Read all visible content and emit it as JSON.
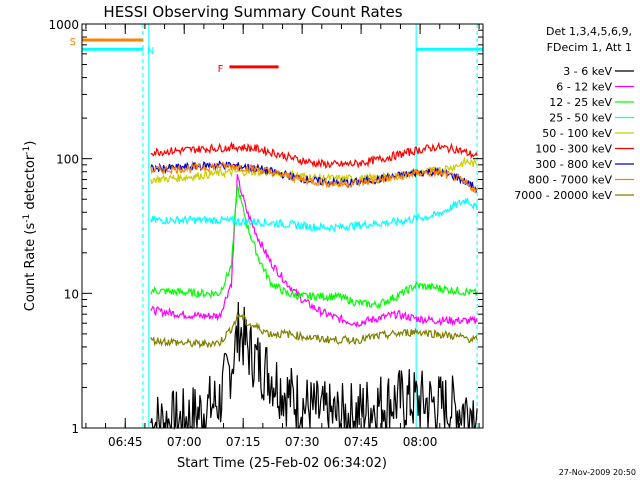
{
  "chart_data": {
    "type": "line",
    "title": "HESSI Observing Summary Count Rates",
    "xlabel": "Start Time (25-Feb-02 06:34:02)",
    "ylabel_main": "Count Rate (s",
    "ylabel_sup1": "-1",
    "ylabel_mid": " detector",
    "ylabel_sup2": "-1",
    "ylabel_end": ")",
    "y_scale": "log",
    "ylim": [
      1,
      1000
    ],
    "xlim_minutes": [
      0,
      102
    ],
    "y_ticks": [
      {
        "value": 1,
        "label": "1"
      },
      {
        "value": 10,
        "label": "10"
      },
      {
        "value": 100,
        "label": "100"
      },
      {
        "value": 1000,
        "label": "1000"
      }
    ],
    "x_ticks": [
      {
        "minutes": 11,
        "label": "06:45"
      },
      {
        "minutes": 26,
        "label": "07:00"
      },
      {
        "minutes": 41,
        "label": "07:15"
      },
      {
        "minutes": 56,
        "label": "07:30"
      },
      {
        "minutes": 71,
        "label": "07:45"
      },
      {
        "minutes": 86,
        "label": "08:00"
      }
    ],
    "legend": {
      "header": [
        "Det 1,3,4,5,6,9,",
        "FDecim 1, Att 1"
      ],
      "placement": "right"
    },
    "series": [
      {
        "name": "3 - 6 keV",
        "color": "#000000",
        "x": [
          17.5,
          25,
          30,
          35,
          38,
          40,
          42,
          45,
          48,
          52,
          56,
          60,
          65,
          70,
          75,
          80,
          85,
          90,
          95,
          100.5
        ],
        "y": [
          1.1,
          1.1,
          1.3,
          1.6,
          3,
          5.5,
          4,
          3,
          2.5,
          1.8,
          1.5,
          1.3,
          1.2,
          1.3,
          1.5,
          1.6,
          1.6,
          1.5,
          1.4,
          1.4
        ]
      },
      {
        "name": "6 - 12 keV",
        "color": "#ff00ff",
        "x": [
          17.5,
          25,
          30,
          35,
          38,
          39.5,
          42,
          45,
          48,
          52,
          56,
          60,
          65,
          70,
          75,
          80,
          85,
          90,
          95,
          100.5
        ],
        "y": [
          7.5,
          7,
          6.8,
          6.8,
          12,
          72,
          40,
          25,
          17,
          12,
          9,
          7.5,
          6.5,
          6,
          6.5,
          7,
          6.5,
          6.3,
          6.3,
          6.2
        ]
      },
      {
        "name": "12 - 25 keV",
        "color": "#00ff00",
        "x": [
          17.5,
          25,
          30,
          35,
          38,
          39.5,
          42,
          45,
          48,
          52,
          56,
          60,
          65,
          70,
          75,
          80,
          85,
          90,
          95,
          100.5
        ],
        "y": [
          10.5,
          10.2,
          10,
          10,
          16,
          62,
          32,
          18,
          12,
          10,
          9.5,
          9.5,
          9.5,
          8.5,
          8.2,
          9.5,
          11.5,
          11,
          10.5,
          10
        ]
      },
      {
        "name": "25 - 50 keV",
        "color": "#00ffff",
        "x": [
          17.5,
          25,
          30,
          35,
          40,
          45,
          50,
          55,
          60,
          65,
          70,
          75,
          80,
          85,
          90,
          95,
          98,
          100.5
        ],
        "y": [
          35,
          35,
          35,
          35,
          34,
          34,
          33,
          32,
          31,
          31,
          32,
          33,
          34,
          36,
          38,
          45,
          50,
          42
        ]
      },
      {
        "name": "50 - 100 keV",
        "color": "#cccc00",
        "x": [
          17.5,
          25,
          30,
          35,
          40,
          45,
          50,
          55,
          60,
          65,
          70,
          75,
          80,
          85,
          90,
          95,
          98,
          100.5
        ],
        "y": [
          70,
          72,
          75,
          78,
          80,
          80,
          78,
          75,
          72,
          71,
          71,
          72,
          74,
          78,
          82,
          88,
          95,
          90
        ]
      },
      {
        "name": "100 - 300 keV",
        "color": "#ff0000",
        "x": [
          17.5,
          25,
          30,
          35,
          40,
          45,
          50,
          55,
          60,
          65,
          70,
          75,
          80,
          85,
          90,
          95,
          98,
          100.5
        ],
        "y": [
          112,
          115,
          118,
          120,
          122,
          118,
          108,
          98,
          92,
          90,
          92,
          98,
          106,
          115,
          122,
          118,
          110,
          105
        ]
      },
      {
        "name": "300 - 800 keV",
        "color": "#0000cc",
        "x": [
          17.5,
          25,
          30,
          35,
          40,
          45,
          50,
          55,
          60,
          65,
          70,
          75,
          80,
          85,
          90,
          95,
          98,
          100.5
        ],
        "y": [
          84,
          86,
          88,
          90,
          88,
          84,
          78,
          72,
          68,
          66,
          67,
          70,
          74,
          79,
          80,
          74,
          66,
          60
        ]
      },
      {
        "name": "800 - 7000 keV",
        "color": "#ff8000",
        "x": [
          17.5,
          25,
          30,
          35,
          40,
          45,
          50,
          55,
          60,
          65,
          70,
          75,
          80,
          85,
          90,
          95,
          98,
          100.5
        ],
        "y": [
          82,
          84,
          86,
          88,
          87,
          83,
          77,
          71,
          67,
          65,
          66,
          69,
          73,
          78,
          79,
          73,
          64,
          58
        ]
      },
      {
        "name": "7000 - 20000 keV",
        "color": "#808000",
        "x": [
          17.5,
          25,
          30,
          35,
          38,
          40,
          42,
          45,
          48,
          52,
          56,
          60,
          65,
          70,
          75,
          80,
          85,
          90,
          95,
          100.5
        ],
        "y": [
          4.5,
          4.3,
          4.2,
          4.3,
          5.5,
          7,
          6,
          5.5,
          5,
          5,
          4.8,
          4.6,
          4.5,
          4.5,
          4.8,
          5,
          5.2,
          5,
          4.8,
          4.5
        ]
      }
    ],
    "flags": [
      {
        "label": "S",
        "color": "#ff8000",
        "x_start": 0,
        "x_end": 15.5,
        "y": 760
      },
      {
        "label": "N",
        "color": "#00ffff",
        "x_start": 0,
        "x_end": 15.5,
        "y": 650
      },
      {
        "label": "N",
        "color": "#00ffff",
        "x_start": 85,
        "x_end": 102,
        "y": 650
      },
      {
        "label": "F",
        "color": "#ff0000",
        "x_start": 37.5,
        "x_end": 50,
        "y": 480
      }
    ],
    "flag_labels": {
      "S": "S",
      "N": "N",
      "F": "F"
    },
    "vertical_lines": [
      {
        "x": 0,
        "color": "#00ffff",
        "style": "solid"
      },
      {
        "x": 15.5,
        "color": "#00ffff",
        "style": "dashed"
      },
      {
        "x": 17,
        "color": "#00ffff",
        "style": "solid"
      },
      {
        "x": 85,
        "color": "#00ffff",
        "style": "solid"
      },
      {
        "x": 100.5,
        "color": "#00ffff",
        "style": "dashed"
      }
    ],
    "footer_date": "27-Nov-2009 20:50"
  }
}
